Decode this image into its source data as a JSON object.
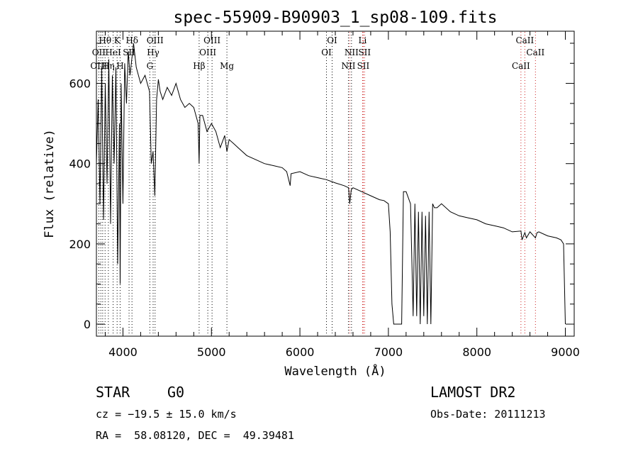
{
  "chart_data": {
    "type": "line",
    "title": "spec-55909-B90903_1_sp08-109.fits",
    "xlabel": "Wavelength (Å)",
    "ylabel": "Flux (relative)",
    "xlim": [
      3700,
      9100
    ],
    "ylim": [
      -30,
      730
    ],
    "xticks": [
      4000,
      5000,
      6000,
      7000,
      8000,
      9000
    ],
    "yticks": [
      0,
      200,
      400,
      600
    ],
    "grid": false,
    "series": [
      {
        "name": "flux",
        "x": [
          3700,
          3720,
          3740,
          3760,
          3780,
          3800,
          3820,
          3840,
          3860,
          3880,
          3900,
          3920,
          3940,
          3960,
          3968,
          3980,
          4000,
          4020,
          4040,
          4060,
          4080,
          4100,
          4120,
          4150,
          4200,
          4250,
          4300,
          4320,
          4340,
          4360,
          4380,
          4400,
          4420,
          4450,
          4500,
          4550,
          4600,
          4650,
          4700,
          4750,
          4800,
          4850,
          4861,
          4870,
          4900,
          4950,
          5000,
          5050,
          5100,
          5150,
          5175,
          5200,
          5250,
          5300,
          5400,
          5500,
          5600,
          5700,
          5800,
          5850,
          5890,
          5900,
          6000,
          6100,
          6200,
          6300,
          6400,
          6500,
          6550,
          6563,
          6580,
          6600,
          6700,
          6800,
          6900,
          6950,
          7000,
          7020,
          7040,
          7060,
          7080,
          7100,
          7150,
          7170,
          7200,
          7250,
          7280,
          7300,
          7320,
          7340,
          7360,
          7380,
          7400,
          7420,
          7440,
          7460,
          7480,
          7500,
          7520,
          7550,
          7600,
          7700,
          7800,
          7900,
          8000,
          8100,
          8200,
          8300,
          8400,
          8498,
          8510,
          8542,
          8560,
          8600,
          8662,
          8680,
          8700,
          8800,
          8900,
          8950,
          8980,
          9000
        ],
        "y": [
          400,
          560,
          300,
          640,
          260,
          600,
          350,
          660,
          250,
          620,
          400,
          640,
          150,
          500,
          100,
          600,
          300,
          650,
          550,
          680,
          620,
          660,
          700,
          640,
          600,
          620,
          580,
          400,
          430,
          320,
          560,
          610,
          580,
          560,
          590,
          570,
          600,
          560,
          540,
          550,
          540,
          500,
          400,
          520,
          520,
          480,
          500,
          480,
          440,
          470,
          430,
          460,
          450,
          440,
          420,
          410,
          400,
          395,
          390,
          380,
          345,
          375,
          380,
          370,
          365,
          360,
          352,
          345,
          340,
          300,
          335,
          340,
          330,
          320,
          310,
          308,
          300,
          230,
          50,
          0,
          0,
          0,
          0,
          330,
          330,
          300,
          20,
          300,
          20,
          280,
          0,
          280,
          20,
          270,
          0,
          280,
          0,
          300,
          290,
          290,
          300,
          280,
          270,
          265,
          260,
          250,
          245,
          240,
          230,
          232,
          210,
          228,
          215,
          230,
          215,
          228,
          230,
          220,
          215,
          210,
          200,
          0
        ]
      }
    ],
    "line_markers": [
      {
        "label": "Hθ",
        "wavelength": 3798,
        "row": 1
      },
      {
        "label": "OII",
        "wavelength": 3727,
        "row": 2
      },
      {
        "label": "OIII",
        "wavelength": 3727,
        "row": 3
      },
      {
        "label": "HeI",
        "wavelength": 3889,
        "row": 2
      },
      {
        "label": "Hη",
        "wavelength": 3835,
        "row": 3
      },
      {
        "label": "K",
        "wavelength": 3934,
        "row": 1
      },
      {
        "label": "H",
        "wavelength": 3968,
        "row": 3
      },
      {
        "label": "SII",
        "wavelength": 4069,
        "row": 2
      },
      {
        "label": "Hδ",
        "wavelength": 4102,
        "row": 1
      },
      {
        "label": "OIII",
        "wavelength": 4363,
        "row": 1
      },
      {
        "label": "Hγ",
        "wavelength": 4341,
        "row": 2
      },
      {
        "label": "G",
        "wavelength": 4304,
        "row": 3
      },
      {
        "label": "Hβ",
        "wavelength": 4861,
        "row": 3
      },
      {
        "label": "OIII",
        "wavelength": 5007,
        "row": 1
      },
      {
        "label": "OIII",
        "wavelength": 4959,
        "row": 2
      },
      {
        "label": "Mg",
        "wavelength": 5175,
        "row": 3
      },
      {
        "label": "OI",
        "wavelength": 6364,
        "row": 1
      },
      {
        "label": "OI",
        "wavelength": 6300,
        "row": 2
      },
      {
        "label": "Li",
        "wavelength": 6708,
        "row": 1
      },
      {
        "label": "NII",
        "wavelength": 6583,
        "row": 2
      },
      {
        "label": "SII",
        "wavelength": 6731,
        "row": 2
      },
      {
        "label": "NII",
        "wavelength": 6548,
        "row": 3
      },
      {
        "label": "SII",
        "wavelength": 6716,
        "row": 3
      },
      {
        "label": "CaII",
        "wavelength": 8542,
        "row": 1
      },
      {
        "label": "CaII",
        "wavelength": 8662,
        "row": 2
      },
      {
        "label": "CaII",
        "wavelength": 8498,
        "row": 3
      }
    ],
    "marker_lines": [
      3727,
      3750,
      3771,
      3798,
      3835,
      3889,
      3934,
      3968,
      4069,
      4102,
      4304,
      4341,
      4363,
      4861,
      4959,
      5007,
      5175,
      6300,
      6364,
      6548,
      6563,
      6583,
      6708,
      6716,
      6731,
      8498,
      8542,
      8662
    ],
    "red_marker_lines": [
      6563,
      6708,
      6716,
      6731,
      8498,
      8542,
      8662
    ]
  },
  "footer": {
    "object_class": "STAR",
    "subclass": "G0",
    "survey": "LAMOST DR2",
    "redshift_text": "cz = −19.5 ± 15.0 km/s",
    "obs_date": "Obs-Date: 20111213",
    "coords": "RA =  58.08120, DEC =  49.39481"
  }
}
